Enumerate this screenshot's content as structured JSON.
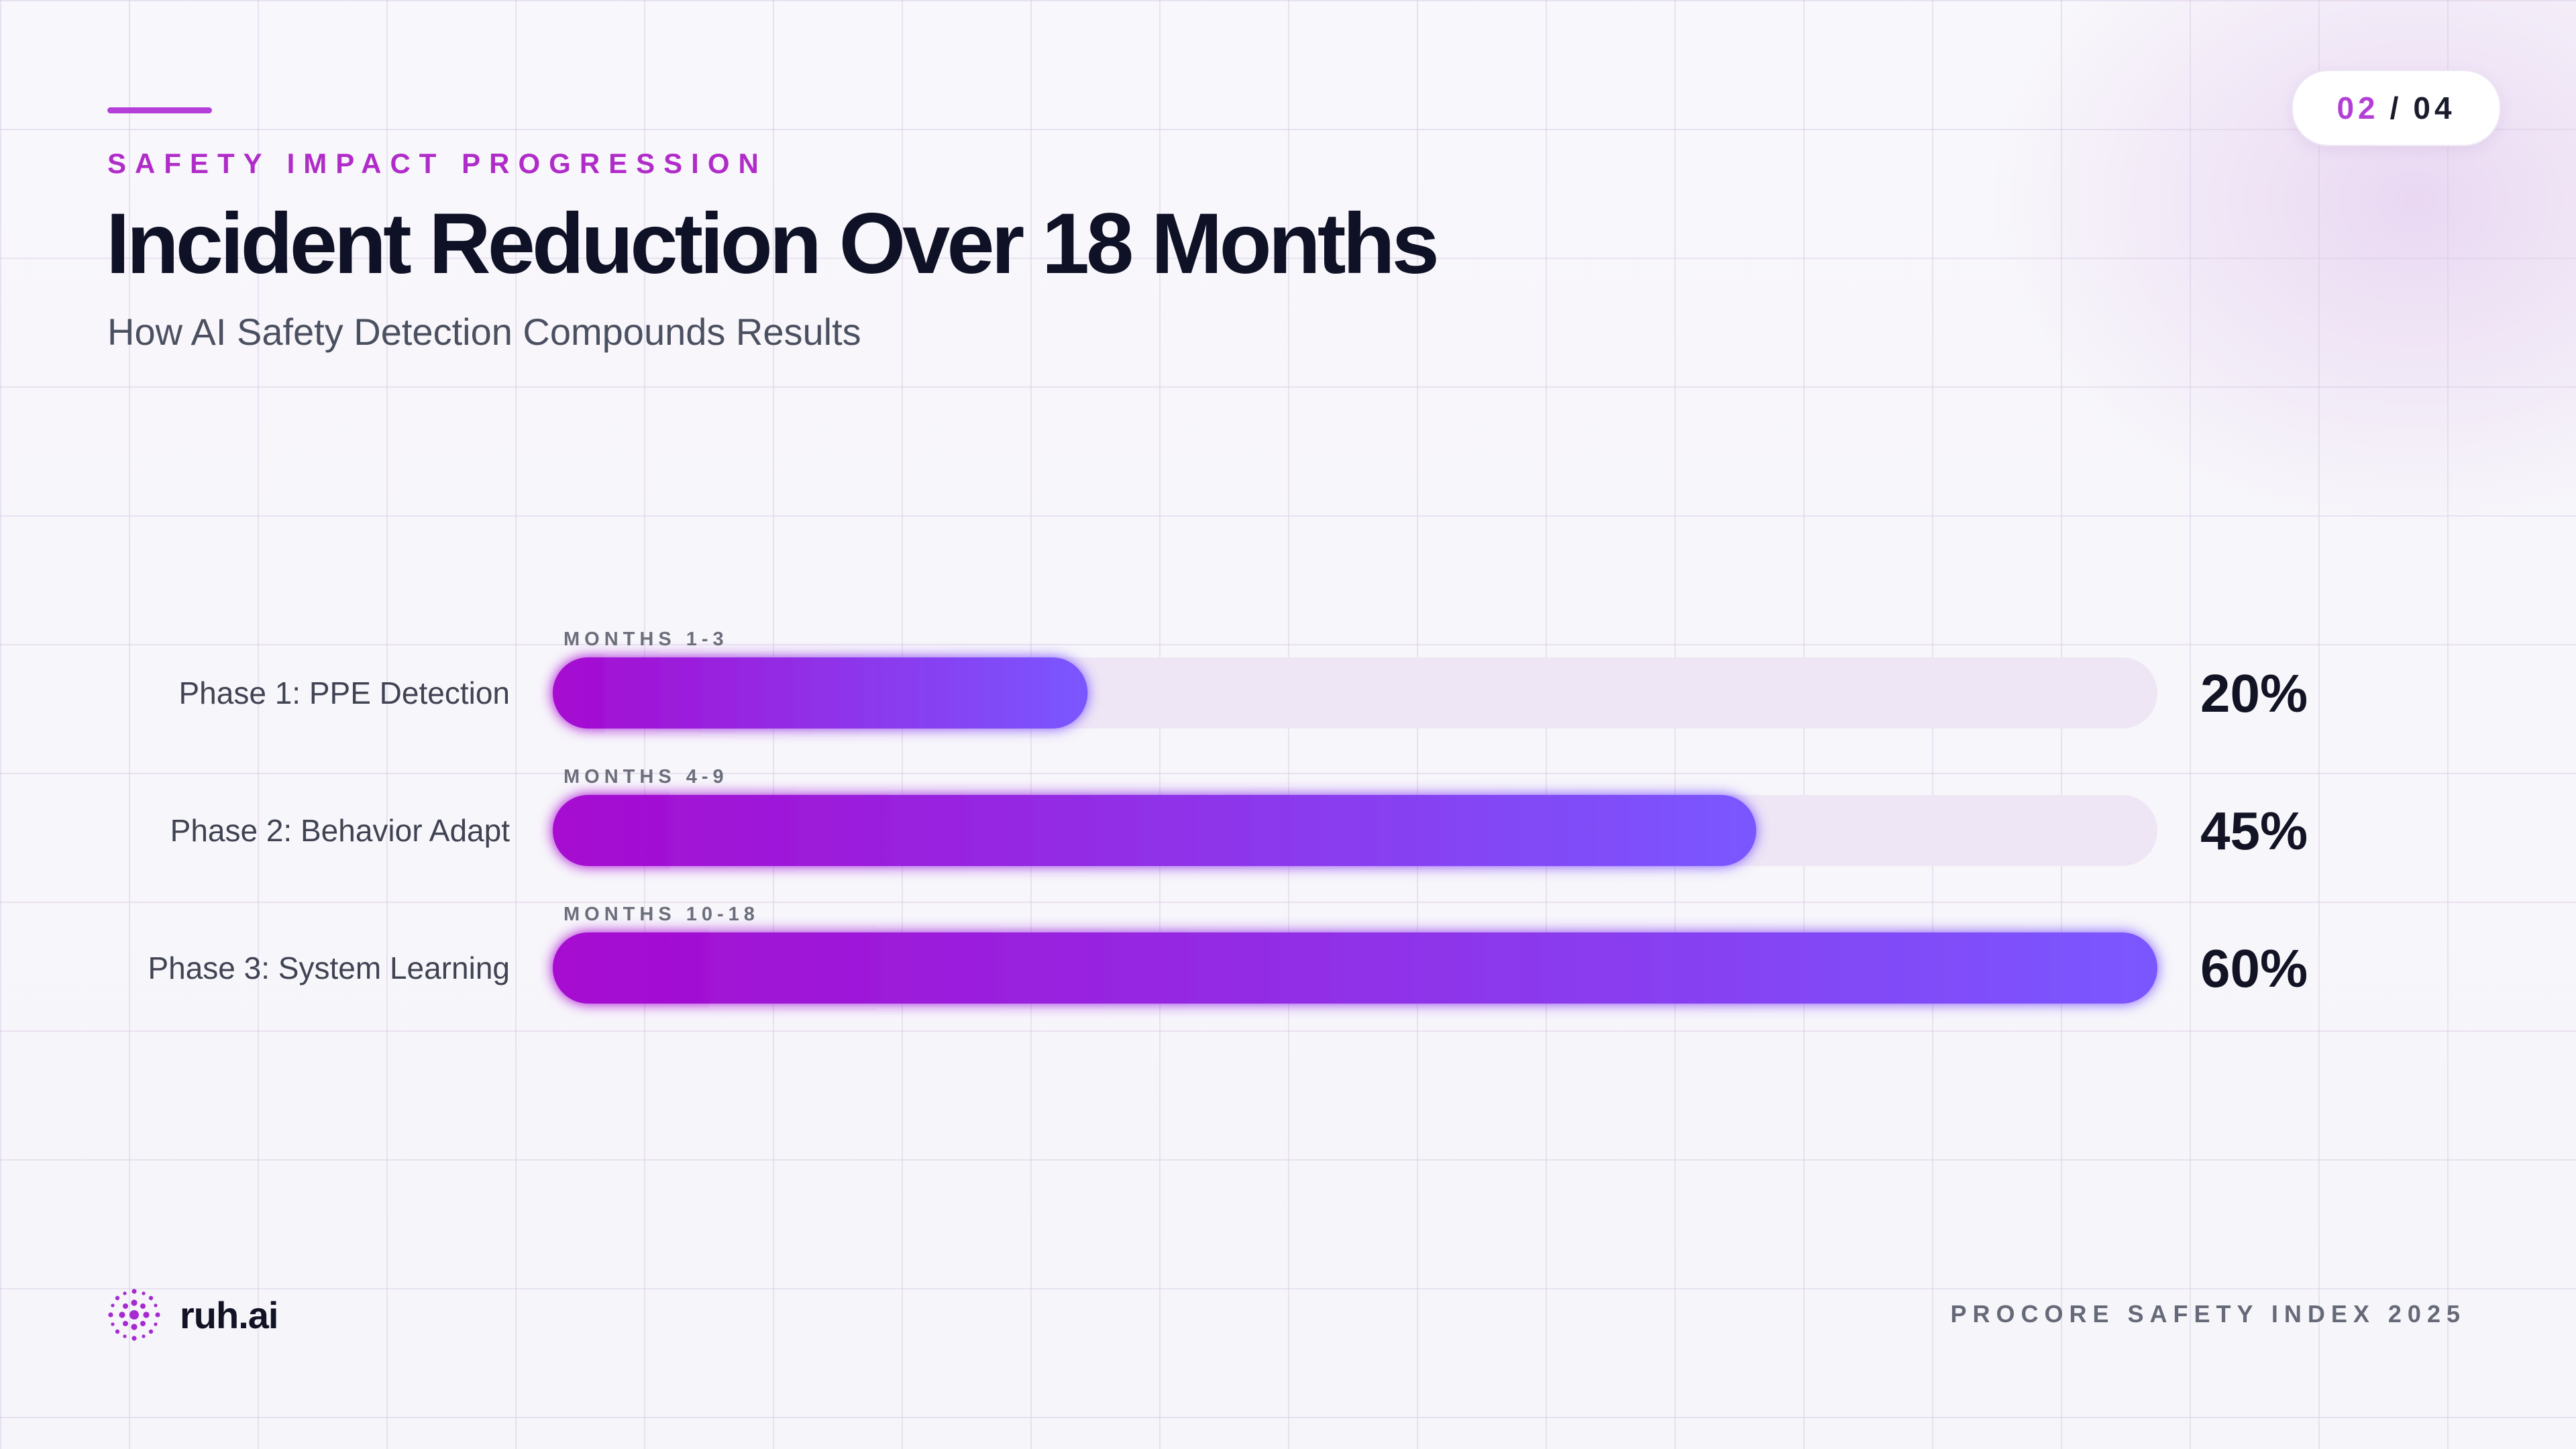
{
  "header": {
    "eyebrow": "SAFETY IMPACT PROGRESSION",
    "title": "Incident Reduction Over 18 Months",
    "subtitle": "How AI Safety Detection Compounds Results"
  },
  "pagination": {
    "current": "02",
    "separator": "/",
    "total": "04"
  },
  "chart_data": {
    "type": "bar",
    "orientation": "horizontal",
    "categories": [
      "Phase 1: PPE Detection",
      "Phase 2: Behavior Adapt",
      "Phase 3: System Learning"
    ],
    "periods": [
      "MONTHS 1-3",
      "MONTHS 4-9",
      "MONTHS 10-18"
    ],
    "values": [
      20,
      45,
      60
    ],
    "value_labels": [
      "20%",
      "45%",
      "60%"
    ],
    "xlim": [
      0,
      60
    ],
    "grid": false,
    "legend": "none",
    "title": "",
    "xlabel": "",
    "ylabel": ""
  },
  "colors": {
    "accent": "#b33fd6",
    "bar_start": "#a60ad0",
    "bar_end": "#7a57ff",
    "track": "#efe6f5"
  },
  "brand": {
    "name": "ruh.ai",
    "logo_icon": "dotted-circle-logo-icon"
  },
  "footer": {
    "text": "PROCORE SAFETY INDEX 2025"
  }
}
